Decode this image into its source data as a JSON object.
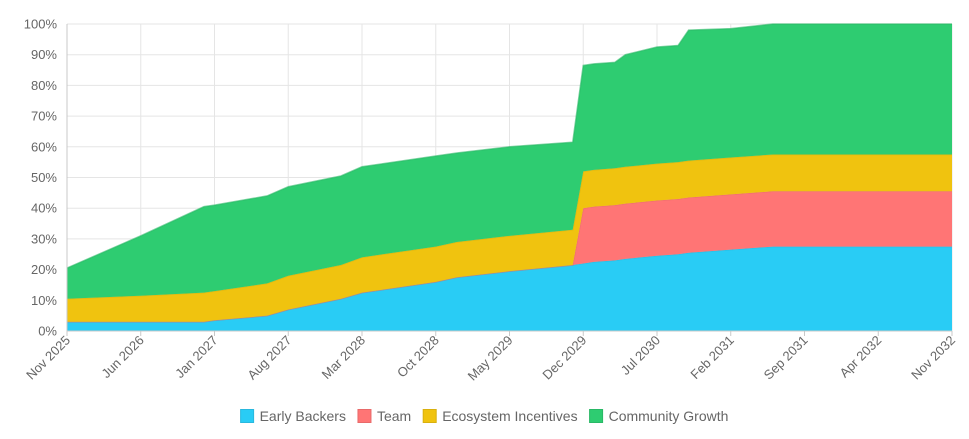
{
  "chart_data": {
    "type": "area",
    "stacked": true,
    "title": "",
    "xlabel": "",
    "ylabel": "",
    "ylim": [
      0,
      100
    ],
    "y_ticks": [
      "0%",
      "10%",
      "20%",
      "30%",
      "40%",
      "50%",
      "60%",
      "70%",
      "80%",
      "90%",
      "100%"
    ],
    "x_ticks": [
      "Nov 2025",
      "Jun 2026",
      "Jan 2027",
      "Aug 2027",
      "Mar 2028",
      "Oct 2028",
      "May 2029",
      "Dec 2029",
      "Jul 2030",
      "Feb 2031",
      "Sep 2031",
      "Apr 2032",
      "Nov 2032"
    ],
    "grid": true,
    "legend_position": "bottom",
    "x": [
      "Nov 2025",
      "Jun 2026",
      "Dec 2026",
      "Jan 2027",
      "Jun 2027",
      "Aug 2027",
      "Jan 2028",
      "Mar 2028",
      "Oct 2028",
      "Dec 2028",
      "May 2029",
      "Nov 2029",
      "Dec 2029",
      "Jan 2030",
      "Mar 2030",
      "Apr 2030",
      "Jul 2030",
      "Sep 2030",
      "Oct 2030",
      "Feb 2031",
      "Jun 2031",
      "Sep 2031",
      "Apr 2032",
      "Nov 2032"
    ],
    "series": [
      {
        "name": "Early Backers",
        "color": "#29CCF5",
        "values": [
          3,
          3,
          3,
          3.5,
          5,
          7,
          10.5,
          12.5,
          16,
          17.5,
          19.5,
          21.5,
          22,
          22.5,
          23,
          23.5,
          24.5,
          25,
          25.5,
          26.5,
          27.5,
          27.5,
          27.5,
          27.5
        ]
      },
      {
        "name": "Team",
        "color": "#FF7575",
        "values": [
          0,
          0,
          0,
          0,
          0,
          0,
          0,
          0,
          0,
          0,
          0,
          0,
          18,
          18,
          18,
          18,
          18,
          18,
          18,
          18,
          18,
          18,
          18,
          18
        ]
      },
      {
        "name": "Ecosystem Incentives",
        "color": "#F0C30F",
        "values": [
          7.5,
          8.5,
          9.5,
          9.5,
          10.5,
          11,
          11,
          11.5,
          11.5,
          11.5,
          11.5,
          11.5,
          12,
          12,
          12,
          12,
          12,
          12,
          12,
          12,
          12,
          12,
          12,
          12
        ]
      },
      {
        "name": "Community Growth",
        "color": "#2ECC71",
        "values": [
          10,
          19.5,
          28,
          28,
          28.5,
          29,
          29,
          29.5,
          29.5,
          29,
          29,
          28.5,
          34.5,
          34.5,
          34.5,
          36.5,
          38,
          38,
          42.5,
          42,
          42.5,
          42.5,
          42.5,
          42.5
        ]
      }
    ]
  },
  "legend": {
    "items": [
      {
        "label": "Early Backers",
        "color": "#29CCF5",
        "stroke": "#29B8DE"
      },
      {
        "label": "Team",
        "color": "#FF7575",
        "stroke": "#E86A6A"
      },
      {
        "label": "Ecosystem Incentives",
        "color": "#F0C30F",
        "stroke": "#D9B00E"
      },
      {
        "label": "Community Growth",
        "color": "#2ECC71",
        "stroke": "#29B866"
      }
    ]
  }
}
